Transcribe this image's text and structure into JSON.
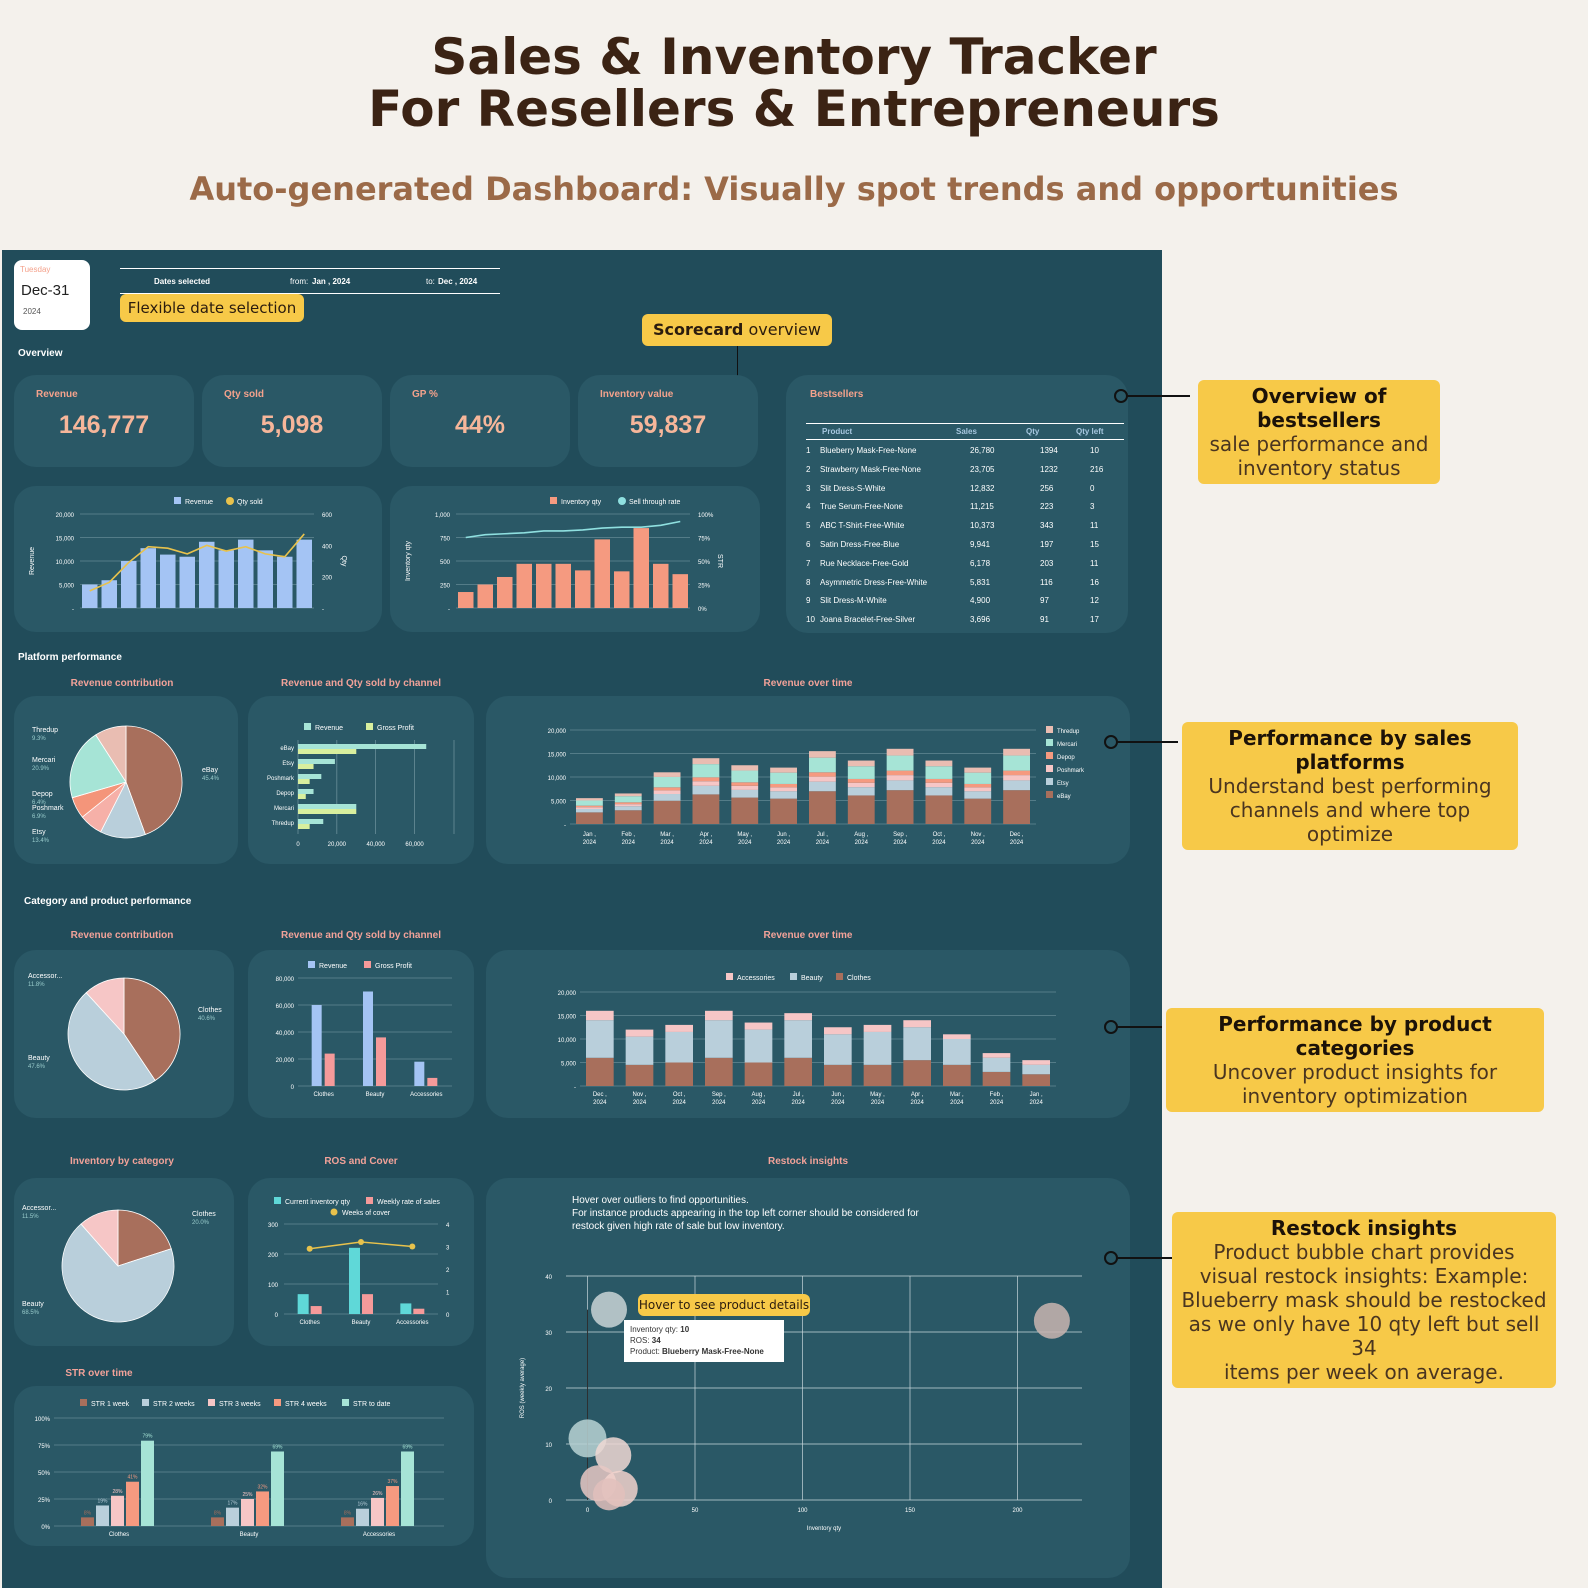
{
  "header": {
    "title_line1": "Sales & Inventory Tracker",
    "title_line2": "For Resellers & Entrepreneurs",
    "subtitle": "Auto-generated Dashboard: Visually spot trends and opportunities"
  },
  "date_card": {
    "weekday": "Tuesday",
    "date": "Dec-31",
    "year": "2024"
  },
  "date_bar": {
    "label": "Dates selected",
    "from_label": "from:",
    "from": "Jan , 2024",
    "to_label": "to:",
    "to": "Dec , 2024"
  },
  "tags": {
    "flexible": "Flexible date selection",
    "scorecard_bold": "Scorecard",
    "scorecard_rest": " overview",
    "hover": "Hover to see product details"
  },
  "sections": {
    "overview": "Overview",
    "platform": "Platform performance",
    "category": "Category and product performance"
  },
  "kpis": [
    {
      "label": "Revenue",
      "value": "146,777"
    },
    {
      "label": "Qty sold",
      "value": "5,098"
    },
    {
      "label": "GP %",
      "value": "44%"
    },
    {
      "label": "Inventory value",
      "value": "59,837"
    }
  ],
  "bestsellers": {
    "title": "Bestsellers",
    "headers": [
      "Product",
      "Sales",
      "Qty",
      "Qty left"
    ],
    "rows": [
      [
        "1",
        "Blueberry Mask-Free-None",
        "26,780",
        "1394",
        "10"
      ],
      [
        "2",
        "Strawberry Mask-Free-None",
        "23,705",
        "1232",
        "216"
      ],
      [
        "3",
        "Slit Dress-S-White",
        "12,832",
        "256",
        "0"
      ],
      [
        "4",
        "True Serum-Free-None",
        "11,215",
        "223",
        "3"
      ],
      [
        "5",
        "ABC T-Shirt-Free-White",
        "10,373",
        "343",
        "11"
      ],
      [
        "6",
        "Satin Dress-Free-Blue",
        "9,941",
        "197",
        "15"
      ],
      [
        "7",
        "Rue Necklace-Free-Gold",
        "6,178",
        "203",
        "11"
      ],
      [
        "8",
        "Asymmetric Dress-Free-White",
        "5,831",
        "116",
        "16"
      ],
      [
        "9",
        "Slit Dress-M-White",
        "4,900",
        "97",
        "12"
      ],
      [
        "10",
        "Joana Bracelet-Free-Silver",
        "3,696",
        "91",
        "17"
      ]
    ]
  },
  "panel_titles": {
    "rev_contrib": "Revenue contribution",
    "rev_qty_channel": "Revenue and Qty sold by channel",
    "rev_time": "Revenue over time",
    "inv_cat": "Inventory by category",
    "ros": "ROS and Cover",
    "restock": "Restock insights",
    "str": "STR over time"
  },
  "restock_text": {
    "line1": "Hover over outliers to find opportunities.",
    "line2": "For instance products appearing in the top left corner should be considered for",
    "line3": "restock given high rate of sale but low inventory."
  },
  "tooltip": {
    "l1": "Inventory qty:",
    "v1": "10",
    "l2": "ROS:",
    "v2": "34",
    "l3": "Product:",
    "v3": "Blueberry Mask-Free-None"
  },
  "callouts": [
    {
      "bold": "Overview of bestsellers",
      "lines": [
        "sale performance and",
        "inventory status"
      ]
    },
    {
      "bold": "Performance by sales platforms",
      "lines": [
        "Understand best performing",
        "channels and where top optimize"
      ]
    },
    {
      "bold": "Performance by product categories",
      "lines": [
        "Uncover product insights for",
        "inventory optimization"
      ]
    },
    {
      "bold": "Restock insights",
      "lines": [
        "Product bubble chart provides",
        "visual restock insights: Example:",
        "Blueberry mask should be restocked",
        "as we only have 10 qty left but sell 34",
        "items per week on average."
      ]
    }
  ],
  "chart_data": [
    {
      "type": "bar",
      "id": "rev_qty_month",
      "legend": [
        "Revenue",
        "Qty sold"
      ],
      "ylabel": "Revenue",
      "y2label": "Qty",
      "yticks": [
        "20,000",
        "15,000",
        "10,000",
        "5,000",
        "-"
      ],
      "y2ticks": [
        "600",
        "400",
        "200",
        "-"
      ],
      "values": [
        5500,
        6500,
        11000,
        14000,
        12500,
        12000,
        15500,
        13500,
        16000,
        13500,
        12000,
        16000
      ],
      "line": [
        120,
        180,
        320,
        430,
        420,
        380,
        440,
        400,
        430,
        380,
        360,
        520
      ],
      "ylim": [
        0,
        22000
      ],
      "y2lim": [
        0,
        660
      ]
    },
    {
      "type": "bar",
      "id": "inv_month",
      "legend": [
        "Inventory qty",
        "Sell through rate"
      ],
      "ylabel": "Inventory qty",
      "y2label": "STR",
      "yticks": [
        "1,000",
        "750",
        "500",
        "250",
        "-"
      ],
      "y2ticks": [
        "100%",
        "75%",
        "50%",
        "25%",
        "0%"
      ],
      "values": [
        170,
        250,
        330,
        470,
        470,
        470,
        400,
        730,
        390,
        850,
        470,
        360
      ],
      "line": [
        75,
        78,
        79,
        80,
        82,
        82,
        83,
        85,
        86,
        86,
        88,
        92
      ],
      "ylim": [
        0,
        1000
      ],
      "y2lim": [
        0,
        100
      ]
    },
    {
      "type": "pie",
      "id": "platform_share",
      "labels": [
        "eBay",
        "Etsy",
        "Poshmark",
        "Depop",
        "Mercari",
        "Thredup"
      ],
      "pct_labels": [
        "45.4%",
        "13.4%",
        "6.9%",
        "6.4%",
        "20.9%",
        "9.3%"
      ],
      "values": [
        45.4,
        13.4,
        6.9,
        6.4,
        20.9,
        9.3
      ],
      "colors": [
        "#a86f5c",
        "#b9cfdb",
        "#f6b0a8",
        "#f4957a",
        "#a6e4d6",
        "#e9bdb2"
      ]
    },
    {
      "type": "bar",
      "id": "platform_rev_gp",
      "legend": [
        "Revenue",
        "Gross Profit"
      ],
      "categories": [
        "eBay",
        "Etsy",
        "Poshmark",
        "Depop",
        "Mercari",
        "Thredup"
      ],
      "series": [
        {
          "name": "Revenue",
          "values": [
            66000,
            19000,
            12000,
            8000,
            30000,
            13000
          ]
        },
        {
          "name": "Gross Profit",
          "values": [
            30000,
            8000,
            6000,
            4000,
            30000,
            6000
          ]
        }
      ],
      "xticks": [
        "0",
        "20,000",
        "40,000",
        "60,000"
      ]
    },
    {
      "type": "bar",
      "id": "platform_stack",
      "legend": [
        "Thredup",
        "Mercari",
        "Depop",
        "Poshmark",
        "Etsy",
        "eBay"
      ],
      "yticks": [
        "20,000",
        "15,000",
        "10,000",
        "5,000",
        "-"
      ],
      "categories": [
        "Jan , 2024",
        "Feb , 2024",
        "Mar , 2024",
        "Apr , 2024",
        "May , 2024",
        "Jun , 2024",
        "Jul , 2024",
        "Aug , 2024",
        "Sep , 2024",
        "Oct , 2024",
        "Nov , 2024",
        "Dec , 2024"
      ],
      "totals": [
        5500,
        6500,
        11000,
        14000,
        12500,
        12000,
        15500,
        13500,
        16000,
        13500,
        12000,
        16000
      ]
    },
    {
      "type": "pie",
      "id": "cat_share",
      "labels": [
        "Clothes",
        "Beauty",
        "Accessories"
      ],
      "label_text": [
        "Clothes",
        "Beauty",
        "Accessor..."
      ],
      "pct_labels": [
        "40.6%",
        "47.6%",
        "11.8%"
      ],
      "values": [
        40.6,
        47.6,
        11.8
      ],
      "colors": [
        "#a86f5c",
        "#b9cfdb",
        "#f6c6c6"
      ]
    },
    {
      "type": "bar",
      "id": "cat_rev_gp",
      "legend": [
        "Revenue",
        "Gross Profit"
      ],
      "categories": [
        "Clothes",
        "Beauty",
        "Accessories"
      ],
      "yticks": [
        "80,000",
        "60,000",
        "40,000",
        "20,000",
        "0"
      ],
      "series": [
        {
          "name": "Revenue",
          "values": [
            60000,
            70000,
            18000
          ]
        },
        {
          "name": "Gross Profit",
          "values": [
            24000,
            36000,
            6000
          ]
        }
      ]
    },
    {
      "type": "bar",
      "id": "cat_stack",
      "legend": [
        "Accessories",
        "Beauty",
        "Clothes"
      ],
      "yticks": [
        "20,000",
        "15,000",
        "10,000",
        "5,000",
        "-"
      ],
      "categories": [
        "Dec , 2024",
        "Nov , 2024",
        "Oct , 2024",
        "Sep , 2024",
        "Aug , 2024",
        "Jul , 2024",
        "Jun , 2024",
        "May , 2024",
        "Apr , 2024",
        "Mar , 2024",
        "Feb , 2024",
        "Jan , 2024"
      ],
      "series": [
        {
          "name": "Clothes",
          "values": [
            6000,
            4500,
            5000,
            6000,
            5000,
            6000,
            4500,
            4500,
            5500,
            4500,
            3000,
            2500
          ]
        },
        {
          "name": "Beauty",
          "values": [
            8000,
            6000,
            6500,
            8000,
            7000,
            8000,
            6500,
            7000,
            7000,
            5500,
            3000,
            2000
          ]
        },
        {
          "name": "Accessories",
          "values": [
            2000,
            1500,
            1500,
            2000,
            1500,
            1500,
            1500,
            1500,
            1500,
            1000,
            1000,
            1000
          ]
        }
      ]
    },
    {
      "type": "pie",
      "id": "inv_share",
      "labels": [
        "Clothes",
        "Beauty",
        "Accessories"
      ],
      "label_text": [
        "Clothes",
        "Beauty",
        "Accessor..."
      ],
      "pct_labels": [
        "20.0%",
        "68.5%",
        "11.5%"
      ],
      "values": [
        20.0,
        68.5,
        11.5
      ],
      "colors": [
        "#a86f5c",
        "#b9cfdb",
        "#f6c6c6"
      ]
    },
    {
      "type": "bar",
      "id": "ros_cover",
      "legend": [
        "Current inventory qty",
        "Weekly rate of sales",
        "Weeks of cover"
      ],
      "categories": [
        "Clothes",
        "Beauty",
        "Accessories"
      ],
      "yticks": [
        "300",
        "200",
        "100",
        "0"
      ],
      "y2ticks": [
        "4",
        "3",
        "2",
        "1",
        "0"
      ],
      "series": [
        {
          "name": "Current inventory qty",
          "values": [
            75,
            250,
            40
          ]
        },
        {
          "name": "Weekly rate of sales",
          "values": [
            30,
            75,
            20
          ]
        }
      ],
      "line": [
        2.9,
        3.2,
        3.0
      ],
      "ylim": [
        0,
        340
      ],
      "y2lim": [
        0,
        4
      ]
    },
    {
      "type": "bar",
      "id": "str_time",
      "legend": [
        "STR 1 week",
        "STR 2 weeks",
        "STR 3 weeks",
        "STR 4 weeks",
        "STR to date"
      ],
      "categories": [
        "Clothes",
        "Beauty",
        "Accessories"
      ],
      "yticks": [
        "100%",
        "75%",
        "50%",
        "25%",
        "0%"
      ],
      "series": [
        {
          "name": "STR 1 week",
          "values": [
            8,
            8,
            8
          ]
        },
        {
          "name": "STR 2 weeks",
          "values": [
            19,
            17,
            16
          ]
        },
        {
          "name": "STR 3 weeks",
          "values": [
            28,
            25,
            26
          ]
        },
        {
          "name": "STR 4 weeks",
          "values": [
            41,
            32,
            37
          ]
        },
        {
          "name": "STR to date",
          "values": [
            79,
            69,
            69
          ]
        }
      ],
      "labels": [
        [
          "8%",
          "19%",
          "28%",
          "41%",
          "79%"
        ],
        [
          "8%",
          "17%",
          "25%",
          "32%",
          "69%"
        ],
        [
          "8%",
          "16%",
          "26%",
          "37%",
          "69%"
        ]
      ]
    },
    {
      "type": "scatter",
      "id": "restock",
      "xlabel": "Inventory qty",
      "ylabel": "ROS (weekly average)",
      "xticks": [
        "0",
        "50",
        "100",
        "150",
        "200"
      ],
      "yticks": [
        "40",
        "30",
        "20",
        "10",
        "0"
      ],
      "xlim": [
        -10,
        230
      ],
      "ylim": [
        0,
        40
      ],
      "points": [
        {
          "x": 10,
          "y": 34,
          "r": 18
        },
        {
          "x": 216,
          "y": 32,
          "r": 18
        },
        {
          "x": 0,
          "y": 11,
          "r": 19
        },
        {
          "x": 12,
          "y": 8,
          "r": 18
        },
        {
          "x": 5,
          "y": 3,
          "r": 18
        },
        {
          "x": 15,
          "y": 2,
          "r": 18
        },
        {
          "x": 10,
          "y": 1,
          "r": 16
        }
      ]
    }
  ]
}
